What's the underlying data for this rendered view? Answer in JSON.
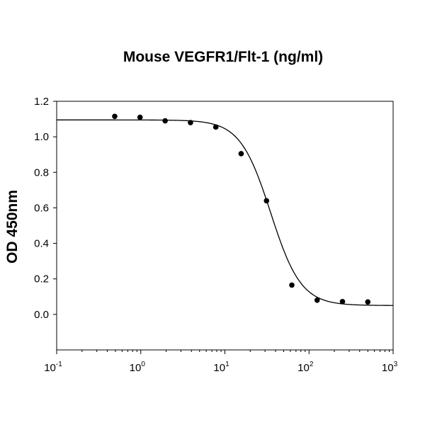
{
  "chart_data": {
    "type": "scatter",
    "title": "Mouse VEGFR1/Flt-1 (ng/ml)",
    "xlabel": "",
    "ylabel": "OD 450nm",
    "x_scale": "log10",
    "xlim": [
      0.1,
      1000
    ],
    "ylim": [
      -0.2,
      1.2
    ],
    "x_ticks": [
      {
        "base": "10",
        "exp": "-1",
        "value": 0.1
      },
      {
        "base": "10",
        "exp": "0",
        "value": 1
      },
      {
        "base": "10",
        "exp": "1",
        "value": 10
      },
      {
        "base": "10",
        "exp": "2",
        "value": 100
      },
      {
        "base": "10",
        "exp": "3",
        "value": 1000
      }
    ],
    "y_ticks": [
      {
        "label": "0.0",
        "value": 0.0
      },
      {
        "label": "0.2",
        "value": 0.2
      },
      {
        "label": "0.4",
        "value": 0.4
      },
      {
        "label": "0.6",
        "value": 0.6
      },
      {
        "label": "0.8",
        "value": 0.8
      },
      {
        "label": "1.0",
        "value": 1.0
      },
      {
        "label": "1.2",
        "value": 1.2
      }
    ],
    "grid": false,
    "legend": "none",
    "series": [
      {
        "kind": "points",
        "x": [
          0.49,
          0.98,
          1.95,
          3.9,
          7.8,
          15.6,
          31.25,
          62.5,
          125,
          250,
          500
        ],
        "y": [
          1.115,
          1.11,
          1.09,
          1.08,
          1.055,
          0.905,
          0.64,
          0.165,
          0.08,
          0.072,
          0.07
        ]
      },
      {
        "kind": "fit-curve",
        "model": "four-parameter-logistic",
        "top": 1.095,
        "bottom": 0.05,
        "ec50": 35,
        "hill": 2.4
      }
    ]
  }
}
